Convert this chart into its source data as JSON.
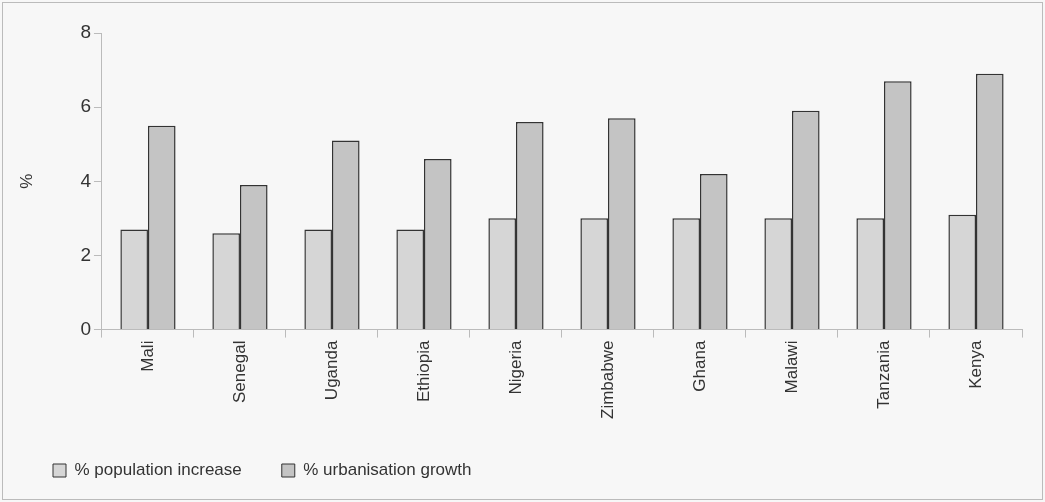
{
  "chart_data": {
    "type": "bar",
    "ylabel": "%",
    "categories": [
      "Mali",
      "Senegal",
      "Uganda",
      "Ethiopia",
      "Nigeria",
      "Zimbabwe",
      "Ghana",
      "Malawi",
      "Tanzania",
      "Kenya"
    ],
    "series": [
      {
        "name": "% population increase",
        "color": "#d6d6d6",
        "values": [
          2.7,
          2.6,
          2.7,
          2.7,
          3.0,
          3.0,
          3.0,
          3.0,
          3.0,
          3.1
        ]
      },
      {
        "name": "% urbanisation growth",
        "color": "#c4c4c4",
        "values": [
          5.5,
          3.9,
          5.1,
          4.6,
          5.6,
          5.7,
          4.2,
          5.9,
          6.7,
          6.9
        ]
      }
    ],
    "ylim": [
      0,
      8
    ],
    "yticks": [
      0,
      2,
      4,
      6,
      8
    ],
    "grid": false,
    "legend": "bottom"
  }
}
